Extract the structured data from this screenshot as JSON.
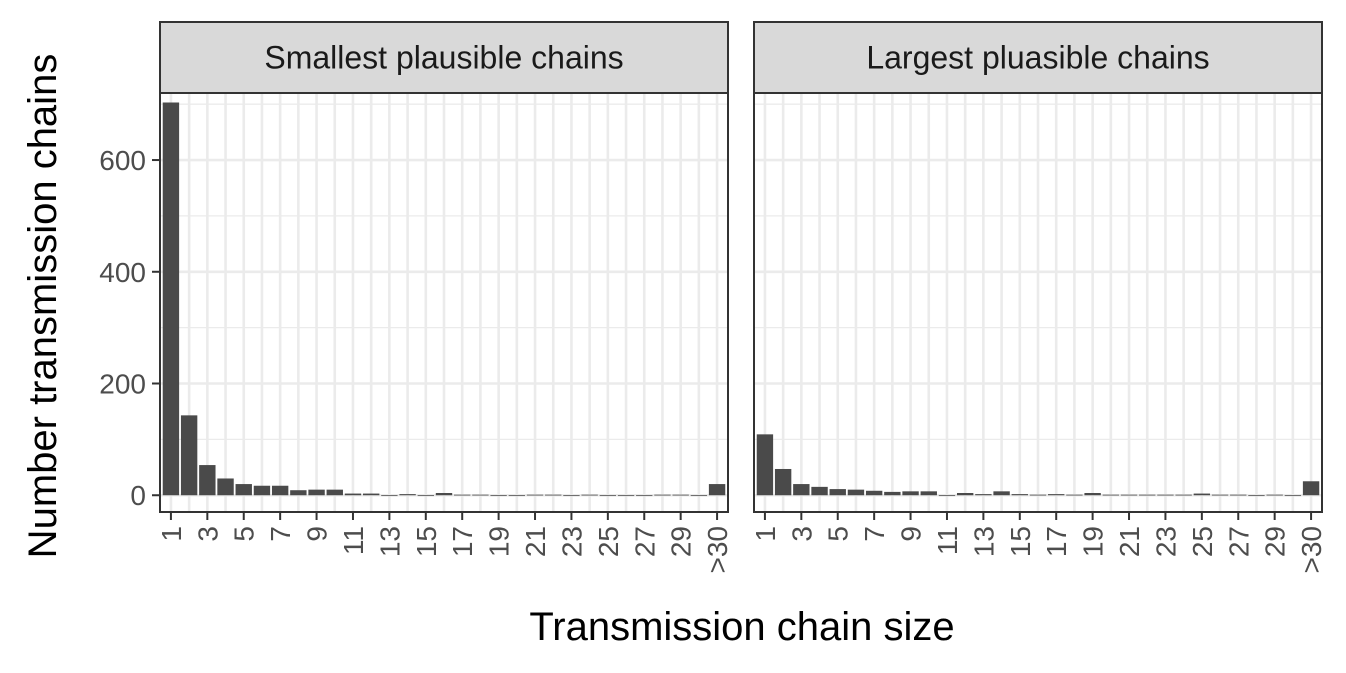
{
  "chart_data": {
    "type": "bar",
    "xlabel": "Transmission chain size",
    "ylabel": "Number transmission chains",
    "ylim": [
      -30,
      720
    ],
    "y_ticks": [
      0,
      200,
      400,
      600
    ],
    "grid": true,
    "categories": [
      "1",
      "2",
      "3",
      "4",
      "5",
      "6",
      "7",
      "8",
      "9",
      "10",
      "11",
      "12",
      "13",
      "14",
      "15",
      "16",
      "17",
      "18",
      "19",
      "20",
      "21",
      "22",
      "23",
      "24",
      "25",
      "26",
      "27",
      "28",
      "29",
      "30",
      ">30"
    ],
    "x_tick_labels": [
      "1",
      "3",
      "5",
      "7",
      "9",
      "11",
      "13",
      "15",
      "17",
      "19",
      "21",
      "23",
      "25",
      "27",
      "29",
      ">30"
    ],
    "panels": [
      {
        "title": "Smallest plausible chains",
        "values": [
          703,
          143,
          54,
          30,
          20,
          17,
          17,
          9,
          10,
          10,
          3,
          3,
          0,
          2,
          0,
          4,
          1,
          1,
          0,
          0,
          1,
          1,
          0,
          1,
          0,
          0,
          0,
          1,
          1,
          0,
          20
        ]
      },
      {
        "title": "Largest pluasible chains",
        "values": [
          109,
          47,
          20,
          15,
          11,
          10,
          8,
          6,
          7,
          7,
          0,
          4,
          2,
          7,
          2,
          1,
          2,
          1,
          4,
          1,
          1,
          1,
          1,
          1,
          3,
          1,
          1,
          0,
          1,
          0,
          25
        ]
      }
    ]
  }
}
